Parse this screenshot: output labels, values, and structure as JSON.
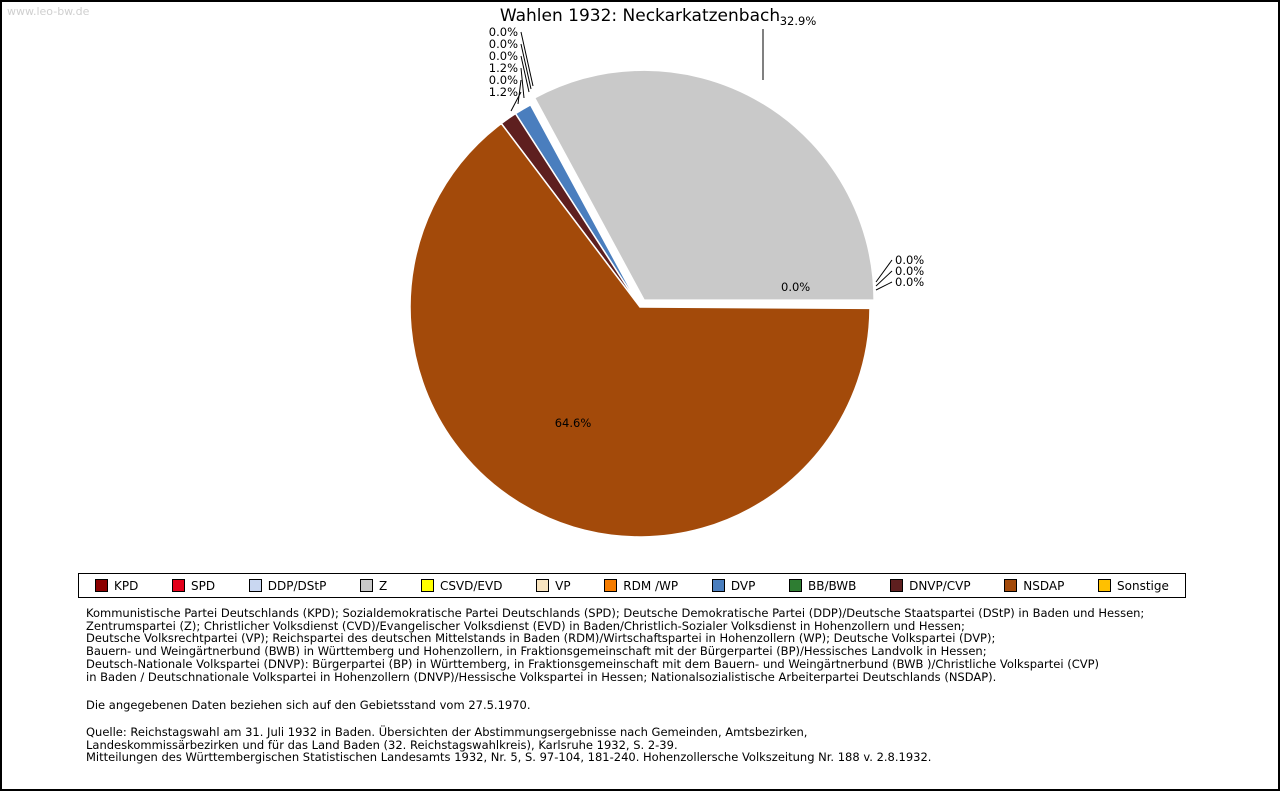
{
  "watermark": "www.leo-bw.de",
  "title": "Wahlen 1932: Neckarkatzenbach",
  "chart_data": {
    "type": "pie",
    "title": "Wahlen 1932: Neckarkatzenbach",
    "unit": "percent",
    "start_angle_deg": 0,
    "direction": "counterclockwise",
    "legend_position": "bottom",
    "series": [
      {
        "label": "KPD",
        "value": 0.0,
        "display": "0.0%",
        "color": "#8B0000"
      },
      {
        "label": "SPD",
        "value": 0.0,
        "display": "0.0%",
        "color": "#E2001A"
      },
      {
        "label": "DDP/DStP",
        "value": 0.0,
        "display": "0.0%",
        "color": "#C9D7F1"
      },
      {
        "label": "Z",
        "value": 32.9,
        "display": "32.9%",
        "color": "#C9C9C9"
      },
      {
        "label": "CSVD/EVD",
        "value": 0.0,
        "display": "0.0%",
        "color": "#FFFF00"
      },
      {
        "label": "VP",
        "value": 0.0,
        "display": "0.0%",
        "color": "#F8E4C0"
      },
      {
        "label": "RDM /WP",
        "value": 0.0,
        "display": "0.0%",
        "color": "#F57C00"
      },
      {
        "label": "DVP",
        "value": 1.2,
        "display": "1.2%",
        "color": "#4A7EBE"
      },
      {
        "label": "BB/BWB",
        "value": 0.0,
        "display": "0.0%",
        "color": "#2E7D32"
      },
      {
        "label": "DNVP/CVP",
        "value": 1.2,
        "display": "1.2%",
        "color": "#5E1F1F"
      },
      {
        "label": "NSDAP",
        "value": 64.6,
        "display": "64.6%",
        "color": "#A34A0A"
      },
      {
        "label": "Sonstige",
        "value": 0.0,
        "display": "0.0%",
        "color": "#FFC000"
      }
    ]
  },
  "notes": {
    "abbreviations": [
      "Kommunistische Partei Deutschlands (KPD); Sozialdemokratische Partei Deutschlands (SPD); Deutsche Demokratische Partei (DDP)/Deutsche Staatspartei (DStP) in Baden und Hessen;",
      "Zentrumspartei (Z); Christlicher Volksdienst (CVD)/Evangelischer Volksdienst (EVD) in Baden/Christlich-Sozialer Volksdienst in Hohenzollern und Hessen;",
      "Deutsche Volksrechtpartei (VP); Reichspartei des deutschen Mittelstands in Baden (RDM)/Wirtschaftspartei in Hohenzollern (WP); Deutsche Volkspartei (DVP);",
      "Bauern- und Weingärtnerbund (BWB) in Württemberg und Hohenzollern, in Fraktionsgemeinschaft mit der Bürgerpartei (BP)/Hessisches Landvolk in Hessen;",
      "Deutsch-Nationale Volkspartei (DNVP): Bürgerpartei (BP) in Württemberg, in Fraktionsgemeinschaft mit dem Bauern- und Weingärtnerbund (BWB )/Christliche Volkspartei (CVP)",
      "in Baden / Deutschnationale Volkspartei in Hohenzollern (DNVP)/Hessische Volkspartei in Hessen; Nationalsozialistische Arbeiterpartei Deutschlands (NSDAP)."
    ],
    "territory_note": "Die angegebenen Daten beziehen sich auf den Gebietsstand vom 27.5.1970.",
    "source": [
      "Quelle: Reichstagswahl am 31. Juli 1932 in Baden. Übersichten der Abstimmungsergebnisse nach Gemeinden, Amtsbezirken,",
      "Landeskommissärbezirken und für das Land Baden (32. Reichstagswahlkreis), Karlsruhe 1932, S. 2-39.",
      "Mitteilungen des Württembergischen Statistischen Landesamts 1932, Nr. 5, S. 97-104, 181-240. Hohenzollersche Volkszeitung Nr. 188 v. 2.8.1932."
    ]
  }
}
